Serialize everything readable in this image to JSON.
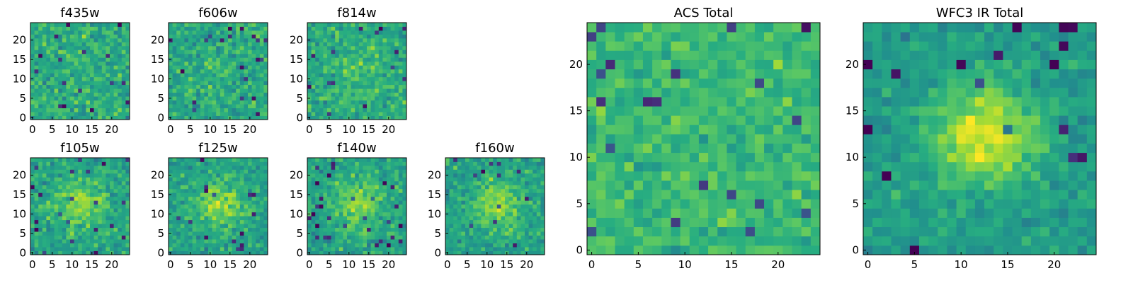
{
  "chart_data": [
    {
      "type": "heatmap",
      "title": "f435w",
      "xticks": [
        0,
        5,
        10,
        15,
        20
      ],
      "yticks": [
        0,
        5,
        10,
        15,
        20
      ],
      "xlim": [
        -0.5,
        24.5
      ],
      "ylim": [
        -0.5,
        24.5
      ],
      "grid_size": 25,
      "colormap": "viridis",
      "profile": "flat",
      "seed": 11
    },
    {
      "type": "heatmap",
      "title": "f606w",
      "xticks": [
        0,
        5,
        10,
        15,
        20
      ],
      "yticks": [
        0,
        5,
        10,
        15,
        20
      ],
      "xlim": [
        -0.5,
        24.5
      ],
      "ylim": [
        -0.5,
        24.5
      ],
      "grid_size": 25,
      "colormap": "viridis",
      "profile": "flat",
      "seed": 23
    },
    {
      "type": "heatmap",
      "title": "f814w",
      "xticks": [
        0,
        5,
        10,
        15,
        20
      ],
      "yticks": [
        0,
        5,
        10,
        15,
        20
      ],
      "xlim": [
        -0.5,
        24.5
      ],
      "ylim": [
        -0.5,
        24.5
      ],
      "grid_size": 25,
      "colormap": "viridis",
      "profile": "weak-center",
      "seed": 37
    },
    {
      "type": "heatmap",
      "title": "f105w",
      "xticks": [
        0,
        5,
        10,
        15,
        20
      ],
      "yticks": [
        0,
        5,
        10,
        15,
        20
      ],
      "xlim": [
        -0.5,
        24.5
      ],
      "ylim": [
        -0.5,
        24.5
      ],
      "grid_size": 25,
      "colormap": "viridis",
      "profile": "center",
      "seed": 41
    },
    {
      "type": "heatmap",
      "title": "f125w",
      "xticks": [
        0,
        5,
        10,
        15,
        20
      ],
      "yticks": [
        0,
        5,
        10,
        15,
        20
      ],
      "xlim": [
        -0.5,
        24.5
      ],
      "ylim": [
        -0.5,
        24.5
      ],
      "grid_size": 25,
      "colormap": "viridis",
      "profile": "center",
      "seed": 53
    },
    {
      "type": "heatmap",
      "title": "f140w",
      "xticks": [
        0,
        5,
        10,
        15,
        20
      ],
      "yticks": [
        0,
        5,
        10,
        15,
        20
      ],
      "xlim": [
        -0.5,
        24.5
      ],
      "ylim": [
        -0.5,
        24.5
      ],
      "grid_size": 25,
      "colormap": "viridis",
      "profile": "center",
      "seed": 67
    },
    {
      "type": "heatmap",
      "title": "f160w",
      "xticks": [
        0,
        5,
        10,
        15,
        20
      ],
      "yticks": [
        0,
        5,
        10,
        15,
        20
      ],
      "xlim": [
        -0.5,
        24.5
      ],
      "ylim": [
        -0.5,
        24.5
      ],
      "grid_size": 25,
      "colormap": "viridis",
      "profile": "center",
      "seed": 79
    },
    {
      "type": "heatmap",
      "title": "ACS Total",
      "xticks": [
        0,
        5,
        10,
        15,
        20
      ],
      "yticks": [
        0,
        5,
        10,
        15,
        20
      ],
      "xlim": [
        -0.5,
        24.5
      ],
      "ylim": [
        -0.5,
        24.5
      ],
      "grid_size": 25,
      "colormap": "viridis",
      "profile": "flat-high",
      "seed": 83
    },
    {
      "type": "heatmap",
      "title": "WFC3 IR Total",
      "xticks": [
        0,
        5,
        10,
        15,
        20
      ],
      "yticks": [
        0,
        5,
        10,
        15,
        20
      ],
      "xlim": [
        -0.5,
        24.5
      ],
      "ylim": [
        -0.5,
        24.5
      ],
      "grid_size": 25,
      "colormap": "viridis",
      "profile": "strong-center",
      "seed": 97
    }
  ]
}
